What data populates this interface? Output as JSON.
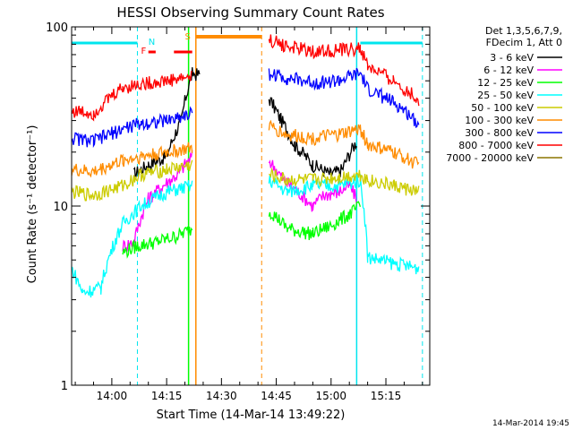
{
  "chart_data": {
    "type": "line",
    "title": "HESSI Observing Summary Count Rates",
    "xlabel": "Start Time (14-Mar-14 13:49:22)",
    "ylabel": "Count Rate (s⁻¹ detector⁻¹)",
    "ylim": [
      1,
      100
    ],
    "y_scale": "log",
    "x_unit": "minutes of day",
    "xlim": [
      "13:49",
      "15:27"
    ],
    "x_ticks": [
      "14:00",
      "14:15",
      "14:30",
      "14:45",
      "15:00",
      "15:15"
    ],
    "y_ticks": [
      "1",
      "10",
      "100"
    ],
    "legend_header": [
      "Det 1,3,5,6,7,9,",
      "FDecim 1, Att 0"
    ],
    "legend_position": "right",
    "timestamp": "14-Mar-2014 19:45",
    "flags": [
      {
        "label": "N",
        "color": "#00e5ee"
      },
      {
        "label": "F",
        "color": "#ff0000"
      },
      {
        "label": "S",
        "color": "#ff8c00"
      }
    ],
    "series": [
      {
        "name": "3 - 6 keV",
        "color": "#000000",
        "points": [
          [
            "14:06",
            15
          ],
          [
            "14:10",
            17
          ],
          [
            "14:15",
            19
          ],
          [
            "14:19",
            30
          ],
          [
            "14:22",
            55
          ],
          [
            "14:24",
            54
          ],
          [
            "14:43",
            40
          ],
          [
            "14:46",
            31
          ],
          [
            "14:50",
            22
          ],
          [
            "14:55",
            17
          ],
          [
            "15:00",
            15
          ],
          [
            "15:03",
            16
          ],
          [
            "15:07",
            23
          ]
        ]
      },
      {
        "name": "6 - 12 keV",
        "color": "#ff00ff",
        "points": [
          [
            "14:03",
            6
          ],
          [
            "14:06",
            6.3
          ],
          [
            "14:10",
            11
          ],
          [
            "14:14",
            13
          ],
          [
            "14:18",
            15
          ],
          [
            "14:22",
            19
          ],
          [
            "14:43",
            18
          ],
          [
            "14:47",
            14
          ],
          [
            "14:51",
            12
          ],
          [
            "14:55",
            10
          ],
          [
            "14:58",
            11.5
          ],
          [
            "15:02",
            12
          ],
          [
            "15:05",
            13
          ],
          [
            "15:07",
            11
          ]
        ]
      },
      {
        "name": "12 - 25 keV",
        "color": "#00ff00",
        "points": [
          [
            "14:03",
            5.5
          ],
          [
            "14:07",
            6
          ],
          [
            "14:12",
            6.3
          ],
          [
            "14:18",
            6.8
          ],
          [
            "14:22",
            7.5
          ],
          [
            "14:43",
            9.5
          ],
          [
            "14:48",
            7.5
          ],
          [
            "14:55",
            7
          ],
          [
            "15:00",
            7.8
          ],
          [
            "15:05",
            9
          ],
          [
            "15:08",
            10
          ]
        ]
      },
      {
        "name": "25 - 50 keV",
        "color": "#00ffff",
        "points": [
          [
            "13:49",
            4.5
          ],
          [
            "13:52",
            3.3
          ],
          [
            "13:57",
            3.5
          ],
          [
            "14:03",
            8
          ],
          [
            "14:08",
            10
          ],
          [
            "14:15",
            12
          ],
          [
            "14:22",
            13
          ],
          [
            "14:43",
            14
          ],
          [
            "14:48",
            12
          ],
          [
            "14:55",
            13
          ],
          [
            "15:02",
            13
          ],
          [
            "15:08",
            14
          ],
          [
            "15:10",
            5.2
          ],
          [
            "15:17",
            4.8
          ],
          [
            "15:24",
            4.5
          ]
        ]
      },
      {
        "name": "50 - 100 keV",
        "color": "#cccc00",
        "points": [
          [
            "13:49",
            12
          ],
          [
            "13:55",
            11.5
          ],
          [
            "14:03",
            13
          ],
          [
            "14:08",
            15
          ],
          [
            "14:15",
            16
          ],
          [
            "14:22",
            17
          ],
          [
            "14:43",
            15
          ],
          [
            "14:48",
            14
          ],
          [
            "14:55",
            14
          ],
          [
            "15:02",
            14.5
          ],
          [
            "15:08",
            15
          ],
          [
            "15:10",
            14
          ],
          [
            "15:17",
            13
          ],
          [
            "15:24",
            12
          ]
        ]
      },
      {
        "name": "100 - 300 keV",
        "color": "#ff8c00",
        "points": [
          [
            "13:49",
            16
          ],
          [
            "13:55",
            15.5
          ],
          [
            "14:03",
            18
          ],
          [
            "14:08",
            19
          ],
          [
            "14:15",
            20
          ],
          [
            "14:22",
            21
          ],
          [
            "14:43",
            28
          ],
          [
            "14:48",
            25
          ],
          [
            "14:55",
            24
          ],
          [
            "15:02",
            25
          ],
          [
            "15:08",
            27
          ],
          [
            "15:10",
            22
          ],
          [
            "15:17",
            20
          ],
          [
            "15:24",
            17
          ]
        ]
      },
      {
        "name": "300 - 800 keV",
        "color": "#0000ff",
        "points": [
          [
            "13:49",
            24
          ],
          [
            "13:55",
            23
          ],
          [
            "14:03",
            27
          ],
          [
            "14:08",
            29
          ],
          [
            "14:15",
            30
          ],
          [
            "14:22",
            33
          ],
          [
            "14:43",
            55
          ],
          [
            "14:48",
            52
          ],
          [
            "14:55",
            49
          ],
          [
            "15:02",
            50
          ],
          [
            "15:08",
            55
          ],
          [
            "15:10",
            45
          ],
          [
            "15:17",
            38
          ],
          [
            "15:24",
            29
          ]
        ]
      },
      {
        "name": "800 - 7000 keV",
        "color": "#ff0000",
        "points": [
          [
            "13:49",
            34
          ],
          [
            "13:55",
            33
          ],
          [
            "14:03",
            46
          ],
          [
            "14:08",
            48
          ],
          [
            "14:15",
            50
          ],
          [
            "14:22",
            53
          ],
          [
            "14:43",
            85
          ],
          [
            "14:48",
            78
          ],
          [
            "14:55",
            73
          ],
          [
            "15:02",
            74
          ],
          [
            "15:08",
            76
          ],
          [
            "15:10",
            60
          ],
          [
            "15:17",
            50
          ],
          [
            "15:24",
            39
          ]
        ]
      },
      {
        "name": "7000 - 20000 keV",
        "color": "#8b7500",
        "points": []
      }
    ],
    "markers": {
      "saa": {
        "start": "14:23",
        "end": "14:41",
        "label": "S",
        "color": "#ff8c00"
      },
      "night": [
        {
          "start": "13:49",
          "end": "14:07",
          "color": "#00e5ee"
        },
        {
          "start": "15:08",
          "end": "15:25",
          "color": "#00e5ee"
        }
      ],
      "flare": [
        {
          "start": "14:10",
          "end": "14:12",
          "color": "#ff0000"
        },
        {
          "start": "14:17",
          "end": "14:22",
          "color": "#ff0000"
        }
      ],
      "vlines_solid": [
        {
          "t": "14:21",
          "color": "#00ff00"
        },
        {
          "t": "14:23",
          "color": "#ff8c00"
        },
        {
          "t": "15:07",
          "color": "#00e5ee"
        }
      ],
      "vlines_dashed": [
        {
          "t": "14:07",
          "color": "#00e5ee"
        },
        {
          "t": "14:41",
          "color": "#ff8c00"
        },
        {
          "t": "15:25",
          "color": "#00e5ee"
        }
      ]
    }
  }
}
